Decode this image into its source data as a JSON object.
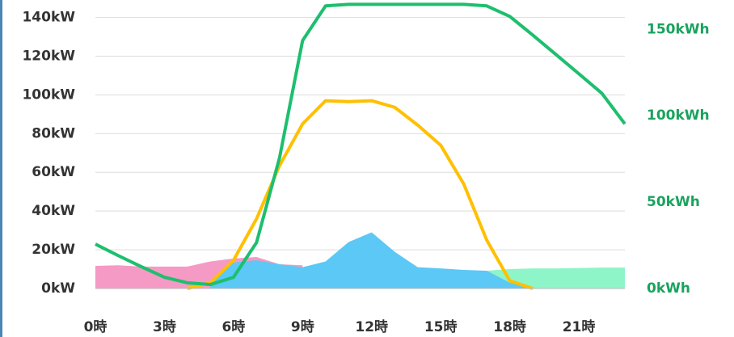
{
  "chart_data": {
    "type": "line",
    "x": [
      0,
      1,
      2,
      3,
      4,
      5,
      6,
      7,
      8,
      9,
      10,
      11,
      12,
      13,
      14,
      15,
      16,
      17,
      18,
      19,
      20,
      21,
      22,
      23
    ],
    "xlim": [
      0,
      23
    ],
    "xticks": [
      {
        "value": 0,
        "label": "0時"
      },
      {
        "value": 3,
        "label": "3時"
      },
      {
        "value": 6,
        "label": "6時"
      },
      {
        "value": 9,
        "label": "9時"
      },
      {
        "value": 12,
        "label": "12時"
      },
      {
        "value": 15,
        "label": "15時"
      },
      {
        "value": 18,
        "label": "18時"
      },
      {
        "value": 21,
        "label": "21時"
      }
    ],
    "ylim": [
      0,
      149
    ],
    "yticks": [
      {
        "value": 0,
        "label": "0kW"
      },
      {
        "value": 20,
        "label": "20kW"
      },
      {
        "value": 40,
        "label": "40kW"
      },
      {
        "value": 60,
        "label": "60kW"
      },
      {
        "value": 80,
        "label": "80kW"
      },
      {
        "value": 100,
        "label": "100kW"
      },
      {
        "value": 120,
        "label": "120kW"
      },
      {
        "value": 140,
        "label": "140kW"
      }
    ],
    "y2lim": [
      0,
      167
    ],
    "y2ticks": [
      {
        "value": 0,
        "label": "0kWh"
      },
      {
        "value": 50,
        "label": "50kWh"
      },
      {
        "value": 100,
        "label": "100kWh"
      },
      {
        "value": 150,
        "label": "150kWh"
      }
    ],
    "grid": true,
    "series": [
      {
        "type": "area",
        "color": "#8ef5c8",
        "values": [
          11.3,
          3.8,
          3.8,
          3.3,
          3.3,
          2,
          0,
          0,
          0,
          0,
          0,
          0,
          0,
          0,
          0,
          0,
          0,
          9.2,
          10,
          10.4,
          10.4,
          10.6,
          10.8,
          10.8
        ]
      },
      {
        "type": "area",
        "color": "#f59ac4",
        "values": [
          11.7,
          12,
          11.3,
          11.3,
          11.3,
          14,
          15.5,
          16.3,
          12.5,
          12,
          null,
          null,
          null,
          null,
          null,
          null,
          null,
          null,
          null,
          null,
          null,
          null,
          null,
          null
        ]
      },
      {
        "type": "area",
        "color": "#5bc8f5",
        "values": [
          null,
          null,
          null,
          null,
          null,
          3,
          13.4,
          14.6,
          12.5,
          11,
          14,
          24,
          29,
          19,
          11,
          10.4,
          9.6,
          9.2,
          3,
          0,
          null,
          null,
          null,
          null
        ]
      },
      {
        "type": "line",
        "color": "#ffc000",
        "values": [
          null,
          null,
          null,
          null,
          0,
          3,
          14.6,
          36,
          63.5,
          85,
          97,
          96.5,
          97,
          93.6,
          84.4,
          74,
          54,
          25,
          4,
          0,
          null,
          null,
          null,
          null
        ]
      },
      {
        "type": "line",
        "color": "#1dbf6e",
        "axis": "y2",
        "values": [
          25.7,
          19,
          12.6,
          6.5,
          3.3,
          2.3,
          6.5,
          26.6,
          75.7,
          143.5,
          163.6,
          164.5,
          164.5,
          164.5,
          164.5,
          164.5,
          164.5,
          163.6,
          157.5,
          146.7,
          135.5,
          124.3,
          113,
          95.3
        ]
      }
    ]
  }
}
